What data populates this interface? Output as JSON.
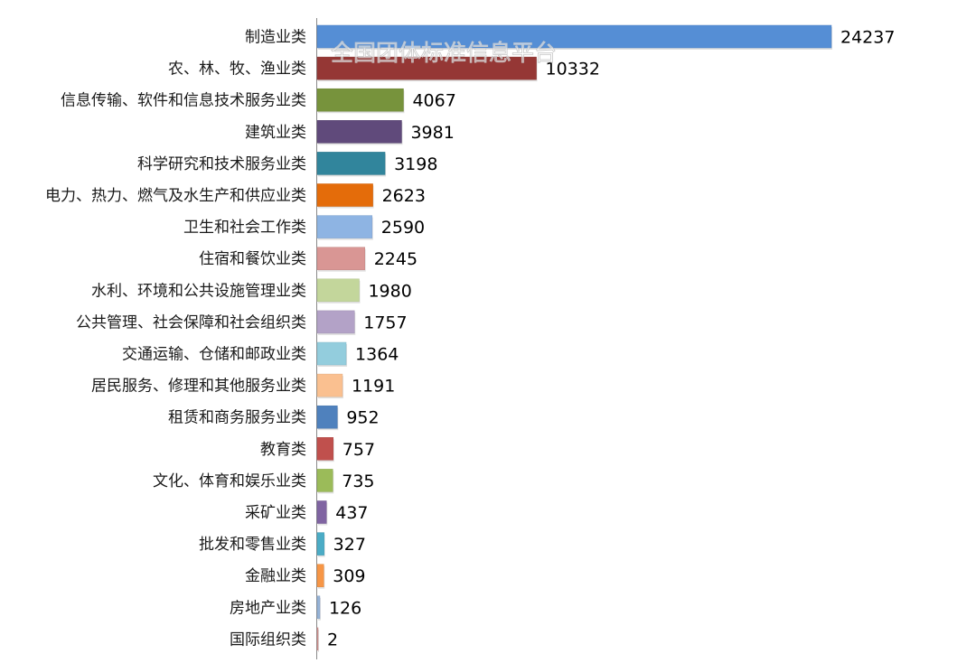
{
  "watermark": "全国团体标准信息平台",
  "chart_data": {
    "type": "bar",
    "orientation": "horizontal",
    "title": "",
    "xlabel": "",
    "ylabel": "",
    "grid": false,
    "legend": "none",
    "xlim": [
      0,
      24237
    ],
    "categories": [
      "制造业类",
      "农、林、牧、渔业类",
      "信息传输、软件和信息技术服务业类",
      "建筑业类",
      "科学研究和技术服务业类",
      "电力、热力、燃气及水生产和供应业类",
      "卫生和社会工作类",
      "住宿和餐饮业类",
      "水利、环境和公共设施管理业类",
      "公共管理、社会保障和社会组织类",
      "交通运输、仓储和邮政业类",
      "居民服务、修理和其他服务业类",
      "租赁和商务服务业类",
      "教育类",
      "文化、体育和娱乐业类",
      "采矿业类",
      "批发和零售业类",
      "金融业类",
      "房地产业类",
      "国际组织类"
    ],
    "values": [
      24237,
      10332,
      4067,
      3981,
      3198,
      2623,
      2590,
      2245,
      1980,
      1757,
      1364,
      1191,
      952,
      757,
      735,
      437,
      327,
      309,
      126,
      2
    ],
    "colors": [
      "#558ed5",
      "#953735",
      "#77933c",
      "#604a7b",
      "#31859c",
      "#e46c0a",
      "#8eb4e3",
      "#d99694",
      "#c3d69b",
      "#b3a2c7",
      "#93cddd",
      "#fac090",
      "#4f81bd",
      "#c0504d",
      "#9bbb59",
      "#8064a2",
      "#4bacc6",
      "#f79646",
      "#95b3d7",
      "#d99694"
    ]
  }
}
